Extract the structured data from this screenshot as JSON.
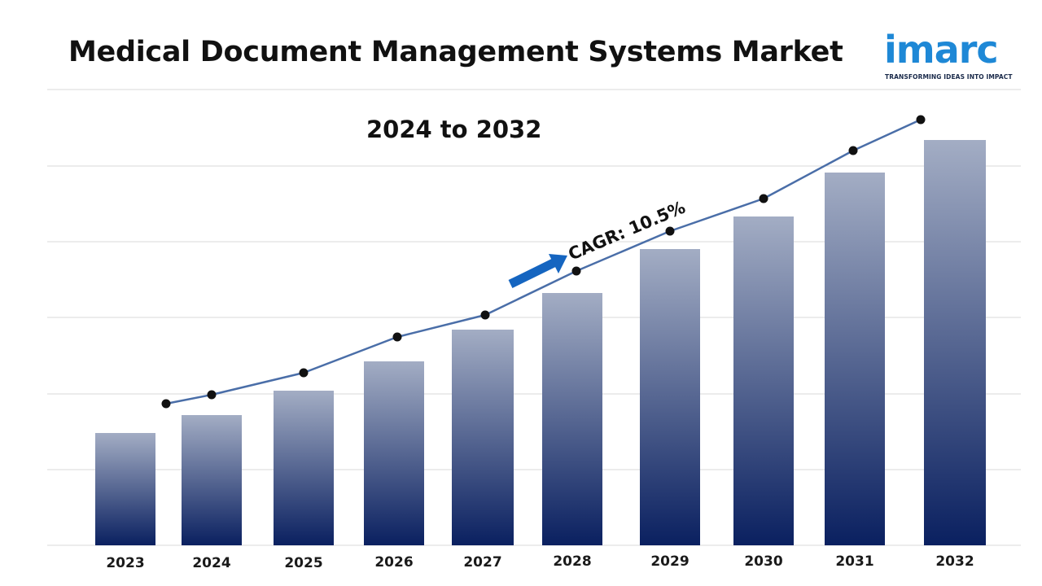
{
  "title": "Medical Document Management Systems Market",
  "logo": {
    "word": "imarc",
    "tagline": "TRANSFORMING IDEAS INTO IMPACT"
  },
  "colors": {
    "bar_top": "#a3adc4",
    "bar_bottom": "#0a2060",
    "line": "#4a6ea8",
    "marker": "#111111",
    "arrow": "#1565c0",
    "grid": "#d9d9d9",
    "logo": "#1e88d6"
  },
  "chart_data": {
    "type": "bar",
    "subtitle": "2024 to 2032",
    "annotation": "CAGR: 10.5%",
    "categories": [
      "2023",
      "2024",
      "2025",
      "2026",
      "2027",
      "2028",
      "2029",
      "2030",
      "2031",
      "2032"
    ],
    "series": [
      {
        "values": [
          138,
          160,
          190,
          226,
          265,
          310,
          364,
          404,
          458,
          498
        ]
      }
    ],
    "trend_line": [
      174,
      185,
      212,
      256,
      283,
      337,
      386,
      426,
      485,
      523
    ],
    "ylim": [
      0,
      560
    ],
    "grid": true,
    "legend": "none"
  }
}
